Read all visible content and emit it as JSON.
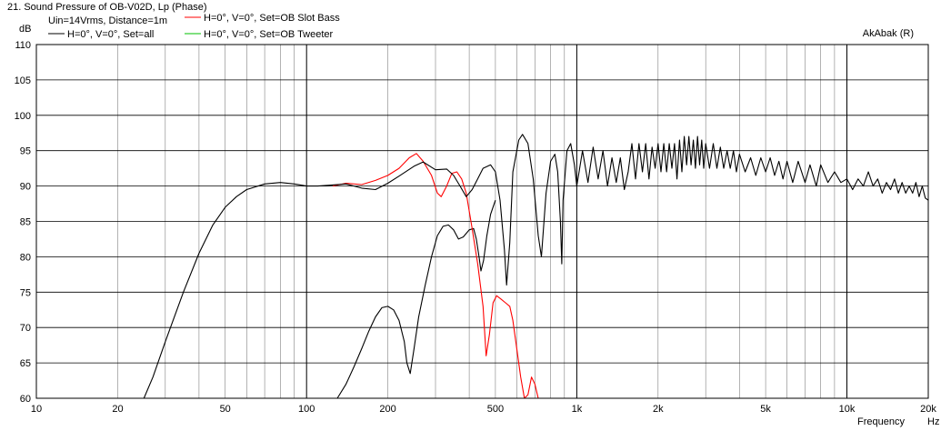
{
  "chart_data": {
    "type": "line",
    "title": "21. Sound Pressure of OB-V02D, Lp (Phase)",
    "subtitle": "Uin=14Vrms, Distance=1m",
    "watermark": "AkAbak (R)",
    "ylabel": "dB",
    "xlabel": "Frequency",
    "xunit": "Hz",
    "x_scale": "log",
    "xlim": [
      10,
      20000
    ],
    "ylim": [
      60,
      110
    ],
    "grid": true,
    "legend_position": "top-left",
    "y_ticks": [
      "110",
      "105",
      "100",
      "95",
      "90",
      "85",
      "80",
      "75",
      "70",
      "65",
      "60"
    ],
    "x_ticks": [
      {
        "value": 10,
        "label": "10"
      },
      {
        "value": 20,
        "label": "20"
      },
      {
        "value": 50,
        "label": "50"
      },
      {
        "value": 100,
        "label": "100"
      },
      {
        "value": 200,
        "label": "200"
      },
      {
        "value": 500,
        "label": "500"
      },
      {
        "value": 1000,
        "label": "1k"
      },
      {
        "value": 2000,
        "label": "2k"
      },
      {
        "value": 5000,
        "label": "5k"
      },
      {
        "value": 10000,
        "label": "10k"
      },
      {
        "value": 20000,
        "label": "20k"
      }
    ],
    "series": [
      {
        "name": "H=0°, V=0°, Set=all",
        "color": "#000000",
        "points": [
          [
            25,
            60
          ],
          [
            27,
            63
          ],
          [
            30,
            68
          ],
          [
            35,
            75
          ],
          [
            40,
            80.5
          ],
          [
            45,
            84.5
          ],
          [
            50,
            87
          ],
          [
            55,
            88.5
          ],
          [
            60,
            89.5
          ],
          [
            70,
            90.3
          ],
          [
            80,
            90.5
          ],
          [
            90,
            90.3
          ],
          [
            100,
            90
          ],
          [
            110,
            90
          ],
          [
            120,
            90.1
          ],
          [
            140,
            90.3
          ],
          [
            160,
            89.7
          ],
          [
            180,
            89.5
          ],
          [
            200,
            90.4
          ],
          [
            220,
            91.4
          ],
          [
            250,
            92.8
          ],
          [
            270,
            93.4
          ],
          [
            300,
            92.3
          ],
          [
            330,
            92.4
          ],
          [
            350,
            91.5
          ],
          [
            370,
            90
          ],
          [
            390,
            88.5
          ],
          [
            410,
            89.5
          ],
          [
            430,
            91
          ],
          [
            450,
            92.5
          ],
          [
            480,
            93
          ],
          [
            500,
            92
          ],
          [
            520,
            88
          ],
          [
            540,
            81
          ],
          [
            550,
            76
          ],
          [
            565,
            82
          ],
          [
            580,
            92
          ],
          [
            610,
            96.5
          ],
          [
            630,
            97.3
          ],
          [
            660,
            96
          ],
          [
            690,
            91
          ],
          [
            720,
            83
          ],
          [
            740,
            80
          ],
          [
            770,
            89
          ],
          [
            800,
            93.5
          ],
          [
            830,
            94.5
          ],
          [
            850,
            92
          ],
          [
            870,
            85
          ],
          [
            880,
            79
          ],
          [
            890,
            88
          ],
          [
            920,
            95
          ],
          [
            950,
            96
          ],
          [
            980,
            93
          ],
          [
            1000,
            90
          ],
          [
            1050,
            95
          ],
          [
            1100,
            90.5
          ],
          [
            1150,
            95.5
          ],
          [
            1200,
            91
          ],
          [
            1250,
            95
          ],
          [
            1300,
            90
          ],
          [
            1350,
            94
          ],
          [
            1400,
            90.5
          ],
          [
            1450,
            94
          ],
          [
            1500,
            89.5
          ],
          [
            1550,
            92
          ],
          [
            1600,
            96
          ],
          [
            1650,
            91
          ],
          [
            1700,
            96
          ],
          [
            1750,
            92
          ],
          [
            1800,
            96
          ],
          [
            1850,
            91
          ],
          [
            1900,
            95.5
          ],
          [
            1950,
            92.5
          ],
          [
            2000,
            96
          ],
          [
            2050,
            92
          ],
          [
            2100,
            96
          ],
          [
            2150,
            92
          ],
          [
            2200,
            96
          ],
          [
            2250,
            92.5
          ],
          [
            2300,
            96
          ],
          [
            2350,
            91
          ],
          [
            2400,
            96.5
          ],
          [
            2450,
            92
          ],
          [
            2500,
            97
          ],
          [
            2550,
            93
          ],
          [
            2600,
            97
          ],
          [
            2650,
            93
          ],
          [
            2700,
            96.5
          ],
          [
            2750,
            92.5
          ],
          [
            2800,
            97
          ],
          [
            2850,
            93
          ],
          [
            2900,
            96.5
          ],
          [
            2950,
            92.5
          ],
          [
            3000,
            96
          ],
          [
            3100,
            92.5
          ],
          [
            3200,
            96
          ],
          [
            3300,
            92.5
          ],
          [
            3400,
            95.5
          ],
          [
            3500,
            92.5
          ],
          [
            3600,
            95
          ],
          [
            3700,
            92.5
          ],
          [
            3800,
            95
          ],
          [
            3900,
            92
          ],
          [
            4000,
            94.5
          ],
          [
            4200,
            92
          ],
          [
            4400,
            94
          ],
          [
            4600,
            91.5
          ],
          [
            4800,
            94
          ],
          [
            5000,
            92
          ],
          [
            5200,
            94
          ],
          [
            5400,
            91.5
          ],
          [
            5600,
            93.5
          ],
          [
            5800,
            91
          ],
          [
            6000,
            93.5
          ],
          [
            6300,
            90.5
          ],
          [
            6600,
            93.5
          ],
          [
            7000,
            90.5
          ],
          [
            7300,
            93
          ],
          [
            7700,
            90
          ],
          [
            8000,
            93
          ],
          [
            8500,
            90.5
          ],
          [
            9000,
            92
          ],
          [
            9500,
            90.5
          ],
          [
            10000,
            91
          ],
          [
            10500,
            89.5
          ],
          [
            11000,
            91
          ],
          [
            11500,
            90
          ],
          [
            12000,
            92
          ],
          [
            12500,
            90
          ],
          [
            13000,
            91
          ],
          [
            13500,
            89
          ],
          [
            14000,
            90.5
          ],
          [
            14500,
            89.5
          ],
          [
            15000,
            91
          ],
          [
            15500,
            89
          ],
          [
            16000,
            90.5
          ],
          [
            16500,
            89
          ],
          [
            17000,
            90
          ],
          [
            17500,
            89
          ],
          [
            18000,
            90.5
          ],
          [
            18500,
            88.5
          ],
          [
            19000,
            90
          ],
          [
            19500,
            88.3
          ],
          [
            20000,
            88
          ]
        ]
      },
      {
        "name": "H=0°, V=0°, Set=OB Slot Bass",
        "color": "#ff0000",
        "points": [
          [
            125,
            90
          ],
          [
            140,
            90.4
          ],
          [
            160,
            90.2
          ],
          [
            180,
            90.8
          ],
          [
            200,
            91.5
          ],
          [
            220,
            92.5
          ],
          [
            240,
            94
          ],
          [
            255,
            94.6
          ],
          [
            270,
            93.5
          ],
          [
            290,
            91.5
          ],
          [
            305,
            89
          ],
          [
            315,
            88.5
          ],
          [
            330,
            90
          ],
          [
            345,
            91.8
          ],
          [
            360,
            92
          ],
          [
            375,
            91
          ],
          [
            390,
            89
          ],
          [
            410,
            84
          ],
          [
            430,
            79
          ],
          [
            450,
            73
          ],
          [
            462,
            66
          ],
          [
            475,
            69
          ],
          [
            490,
            73.5
          ],
          [
            505,
            74.5
          ],
          [
            525,
            74
          ],
          [
            545,
            73.5
          ],
          [
            565,
            73
          ],
          [
            580,
            71
          ],
          [
            600,
            67
          ],
          [
            620,
            63
          ],
          [
            640,
            60
          ],
          [
            660,
            60.5
          ],
          [
            680,
            63
          ],
          [
            700,
            62
          ],
          [
            720,
            60
          ],
          [
            20000,
            60
          ]
        ]
      },
      {
        "name": "H=0°, V=0°, Set=OB Tweeter",
        "color": "#00c000",
        "points": []
      }
    ],
    "extra_curves": [
      {
        "color": "#000000",
        "points": [
          [
            130,
            60
          ],
          [
            140,
            62
          ],
          [
            150,
            64.5
          ],
          [
            160,
            67
          ],
          [
            170,
            69.5
          ],
          [
            180,
            71.5
          ],
          [
            190,
            72.8
          ],
          [
            200,
            73
          ],
          [
            210,
            72.5
          ],
          [
            220,
            71
          ],
          [
            230,
            68
          ],
          [
            235,
            65
          ],
          [
            242,
            63.5
          ],
          [
            250,
            67
          ],
          [
            260,
            71.5
          ],
          [
            275,
            76
          ],
          [
            290,
            80
          ],
          [
            305,
            83
          ],
          [
            320,
            84.3
          ],
          [
            335,
            84.5
          ],
          [
            350,
            83.8
          ],
          [
            365,
            82.5
          ],
          [
            380,
            82.8
          ],
          [
            400,
            83.8
          ],
          [
            415,
            84
          ],
          [
            425,
            82.5
          ],
          [
            435,
            80
          ],
          [
            442,
            78
          ],
          [
            452,
            79.5
          ],
          [
            465,
            83
          ],
          [
            480,
            86
          ],
          [
            500,
            88
          ]
        ]
      }
    ]
  }
}
